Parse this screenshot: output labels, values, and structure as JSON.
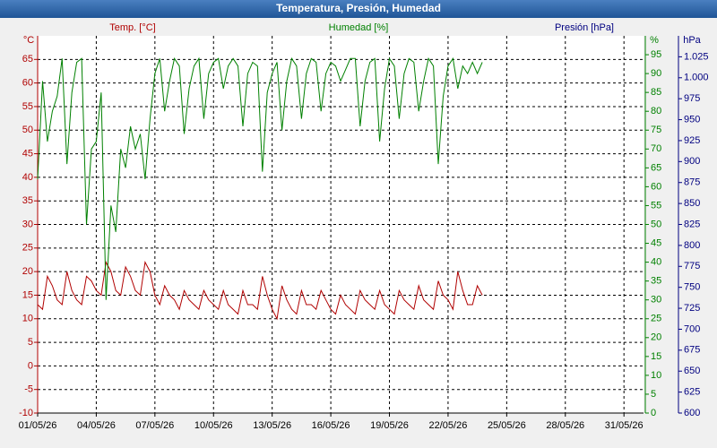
{
  "chart_data": {
    "type": "line",
    "title": "Temperatura, Presión, Humedad",
    "ylabel": "Temp. [°C]",
    "yunit": "°C",
    "y2label": "Humedad [%]",
    "y2unit": "%",
    "y3label": "Presión [hPa]",
    "y3unit": "hPa",
    "xlim": [
      1,
      32
    ],
    "xticks": [
      {
        "value": 1,
        "label": "01/05/26"
      },
      {
        "value": 4,
        "label": "04/05/26"
      },
      {
        "value": 7,
        "label": "07/05/26"
      },
      {
        "value": 10,
        "label": "10/05/26"
      },
      {
        "value": 13,
        "label": "13/05/26"
      },
      {
        "value": 16,
        "label": "16/05/26"
      },
      {
        "value": 19,
        "label": "19/05/26"
      },
      {
        "value": 22,
        "label": "22/05/26"
      },
      {
        "value": 25,
        "label": "25/05/26"
      },
      {
        "value": 28,
        "label": "28/05/26"
      },
      {
        "value": 31,
        "label": "31/05/26"
      }
    ],
    "ylim": [
      -10,
      70
    ],
    "yticks": [
      -10,
      -5,
      0,
      5,
      10,
      15,
      20,
      25,
      30,
      35,
      40,
      45,
      50,
      55,
      60,
      65
    ],
    "y2lim": [
      0,
      100
    ],
    "y2ticks": [
      0,
      5,
      10,
      15,
      20,
      25,
      30,
      35,
      40,
      45,
      50,
      55,
      60,
      65,
      70,
      75,
      80,
      85,
      90,
      95
    ],
    "y3lim": [
      600,
      1050
    ],
    "y3ticks": [
      600,
      625,
      650,
      675,
      700,
      725,
      750,
      775,
      800,
      825,
      850,
      875,
      900,
      925,
      950,
      975,
      {
        "value": 1000,
        "label": "1.000"
      },
      {
        "value": 1025,
        "label": "1.025"
      }
    ],
    "grid": true,
    "x": [
      1,
      1.25,
      1.5,
      1.75,
      2,
      2.25,
      2.5,
      2.75,
      3,
      3.25,
      3.5,
      3.75,
      4,
      4.25,
      4.5,
      4.75,
      5,
      5.25,
      5.5,
      5.75,
      6,
      6.25,
      6.5,
      6.75,
      7,
      7.25,
      7.5,
      7.75,
      8,
      8.25,
      8.5,
      8.75,
      9,
      9.25,
      9.5,
      9.75,
      10,
      10.25,
      10.5,
      10.75,
      11,
      11.25,
      11.5,
      11.75,
      12,
      12.25,
      12.5,
      12.75,
      13,
      13.25,
      13.5,
      13.75,
      14,
      14.25,
      14.5,
      14.75,
      15,
      15.25,
      15.5,
      15.75,
      16,
      16.25,
      16.5,
      16.75,
      17,
      17.25,
      17.5,
      17.75,
      18,
      18.25,
      18.5,
      18.75,
      19,
      19.25,
      19.5,
      19.75,
      20,
      20.25,
      20.5,
      20.75,
      21,
      21.25,
      21.5,
      21.75,
      22,
      22.25,
      22.5,
      22.75,
      23,
      23.25,
      23.5,
      23.75
    ],
    "series": [
      {
        "name": "Temp. [°C]",
        "color": "#b00000",
        "axis": "y",
        "values": [
          13,
          12,
          19,
          17,
          14,
          13,
          20,
          16,
          14,
          13,
          19,
          18,
          16,
          15,
          22,
          20,
          16,
          15,
          21,
          19,
          16,
          15,
          22,
          20,
          15,
          13,
          17,
          15,
          14,
          12,
          16,
          14,
          13,
          12,
          16,
          14,
          13,
          12,
          16,
          13,
          12,
          11,
          16,
          13,
          13,
          12,
          19,
          15,
          12,
          10,
          17,
          14,
          12,
          11,
          16,
          13,
          13,
          12,
          16,
          14,
          12,
          11,
          15,
          13,
          12,
          11,
          16,
          14,
          13,
          12,
          16,
          13,
          12,
          11,
          16,
          14,
          13,
          12,
          17,
          14,
          13,
          12,
          18,
          15,
          14,
          12,
          20,
          16,
          13,
          13,
          17,
          15
        ]
      },
      {
        "name": "Humedad [%]",
        "color": "#008000",
        "axis": "y2",
        "values": [
          62,
          88,
          72,
          80,
          84,
          94,
          66,
          85,
          93,
          94,
          50,
          70,
          72,
          85,
          30,
          55,
          48,
          70,
          65,
          76,
          70,
          74,
          62,
          78,
          90,
          94,
          80,
          88,
          94,
          92,
          74,
          86,
          92,
          94,
          78,
          90,
          93,
          94,
          86,
          92,
          94,
          92,
          76,
          90,
          93,
          92,
          64,
          85,
          90,
          93,
          75,
          88,
          94,
          92,
          78,
          90,
          94,
          93,
          80,
          90,
          93,
          92,
          88,
          91,
          94,
          94,
          76,
          88,
          93,
          94,
          72,
          86,
          94,
          92,
          78,
          90,
          94,
          93,
          80,
          88,
          94,
          92,
          66,
          84,
          92,
          94,
          86,
          92,
          90,
          93,
          90,
          93
        ]
      }
    ]
  }
}
